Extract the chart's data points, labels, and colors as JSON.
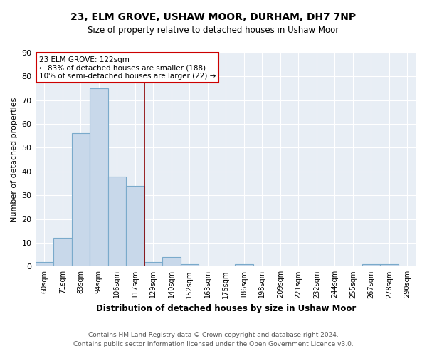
{
  "title": "23, ELM GROVE, USHAW MOOR, DURHAM, DH7 7NP",
  "subtitle": "Size of property relative to detached houses in Ushaw Moor",
  "xlabel": "Distribution of detached houses by size in Ushaw Moor",
  "ylabel": "Number of detached properties",
  "bin_labels": [
    "60sqm",
    "71sqm",
    "83sqm",
    "94sqm",
    "106sqm",
    "117sqm",
    "129sqm",
    "140sqm",
    "152sqm",
    "163sqm",
    "175sqm",
    "186sqm",
    "198sqm",
    "209sqm",
    "221sqm",
    "232sqm",
    "244sqm",
    "255sqm",
    "267sqm",
    "278sqm",
    "290sqm"
  ],
  "bin_values": [
    2,
    12,
    56,
    75,
    38,
    34,
    2,
    4,
    1,
    0,
    0,
    1,
    0,
    0,
    0,
    0,
    0,
    0,
    1,
    1,
    0
  ],
  "bar_color": "#c8d8ea",
  "bar_edge_color": "#7aaacb",
  "ylim": [
    0,
    90
  ],
  "yticks": [
    0,
    10,
    20,
    30,
    40,
    50,
    60,
    70,
    80,
    90
  ],
  "property_bin_index": 5,
  "annotation_title": "23 ELM GROVE: 122sqm",
  "annotation_line1": "← 83% of detached houses are smaller (188)",
  "annotation_line2": "10% of semi-detached houses are larger (22) →",
  "annotation_box_color": "#ffffff",
  "annotation_box_edge_color": "#cc0000",
  "footer_line1": "Contains HM Land Registry data © Crown copyright and database right 2024.",
  "footer_line2": "Contains public sector information licensed under the Open Government Licence v3.0.",
  "marker_line_color": "#8b0000",
  "background_color": "#e8eef5"
}
